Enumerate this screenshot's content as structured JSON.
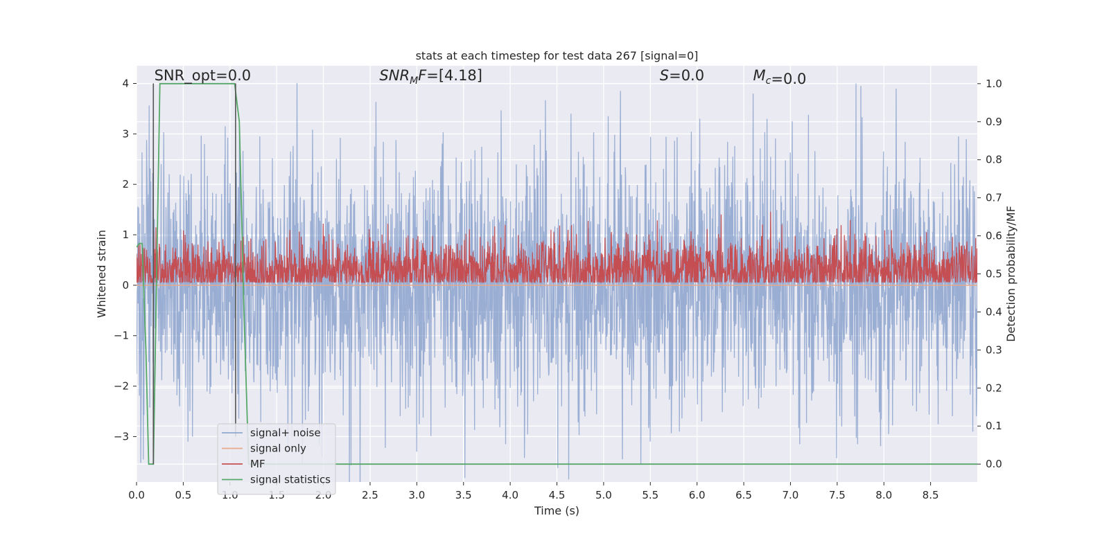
{
  "chart_data": {
    "type": "line",
    "title": "stats at each timestep for test data 267 [signal=0]",
    "xlabel": "Time (s)",
    "ylabel": "Whitened strain",
    "y2label": "Detection probability/MF",
    "xlim": [
      0,
      9.0
    ],
    "ylim": [
      -3.9,
      4.35
    ],
    "y2lim": [
      -0.047,
      1.047
    ],
    "xticks": [
      0.0,
      0.5,
      1.0,
      1.5,
      2.0,
      2.5,
      3.0,
      3.5,
      4.0,
      4.5,
      5.0,
      5.5,
      6.0,
      6.5,
      7.0,
      7.5,
      8.0,
      8.5
    ],
    "yticks": [
      -3,
      -2,
      -1,
      0,
      1,
      2,
      3,
      4
    ],
    "y2ticks": [
      0.0,
      0.1,
      0.2,
      0.3,
      0.4,
      0.5,
      0.6,
      0.7,
      0.8,
      0.9,
      1.0
    ],
    "grid": true,
    "legend_position": "lower-left",
    "annotations": [
      {
        "text": "SNR_opt=0.0",
        "x": 0.19,
        "y": 4.05,
        "italic": false
      },
      {
        "text": "SNR_MF=[4.18]",
        "x": 2.6,
        "y": 4.05,
        "italic": true
      },
      {
        "text": "S=0.0",
        "x": 5.6,
        "y": 4.05,
        "italic": true
      },
      {
        "text": "M_c=0.0",
        "x": 6.6,
        "y": 4.05,
        "italic": true
      }
    ],
    "vlines": [
      {
        "x": 0.18,
        "y": [
          -3.55,
          4.0
        ]
      },
      {
        "x": 1.06,
        "y": [
          -3.0,
          4.0
        ]
      }
    ],
    "series": [
      {
        "name": "signal+ noise",
        "axis": "left",
        "style": "noise",
        "color": "#7b97c7",
        "amplitude": 1.2,
        "x_range": [
          0,
          9.0
        ],
        "peaks": [
          [
            0.05,
            -2.6
          ],
          [
            0.35,
            2.2
          ],
          [
            0.46,
            -2.4
          ],
          [
            0.55,
            -3.1
          ],
          [
            0.95,
            3.15
          ],
          [
            1.1,
            3.08
          ],
          [
            1.32,
            2.95
          ],
          [
            1.65,
            2.65
          ],
          [
            1.84,
            -2.5
          ],
          [
            2.55,
            2.75
          ],
          [
            2.88,
            -2.45
          ],
          [
            3.0,
            -3.3
          ],
          [
            3.95,
            -3.15
          ],
          [
            4.55,
            -2.4
          ],
          [
            4.65,
            3.4
          ],
          [
            4.8,
            -2.6
          ],
          [
            5.05,
            3.35
          ],
          [
            5.18,
            3.85
          ],
          [
            5.2,
            -3.45
          ],
          [
            5.4,
            -3.55
          ],
          [
            5.5,
            -3.1
          ],
          [
            6.05,
            -2.7
          ],
          [
            6.6,
            3.8
          ],
          [
            6.75,
            3.3
          ],
          [
            7.02,
            3.25
          ],
          [
            7.1,
            -3.15
          ],
          [
            7.55,
            -2.8
          ],
          [
            7.7,
            4.0
          ],
          [
            7.72,
            -3.15
          ],
          [
            8.05,
            -2.95
          ],
          [
            8.35,
            -2.5
          ],
          [
            8.8,
            2.95
          ],
          [
            8.95,
            -2.9
          ]
        ]
      },
      {
        "name": "signal only",
        "axis": "left",
        "style": "flat",
        "color": "#e8a98a",
        "y": 0.0
      },
      {
        "name": "MF",
        "axis": "right",
        "style": "noise",
        "color": "#c44e52",
        "baseline": 0.5,
        "amplitude": 0.046,
        "x_range": [
          0,
          9.0
        ],
        "peaks": [
          [
            0.02,
            0.58
          ],
          [
            0.25,
            0.57
          ],
          [
            3.0,
            0.59
          ],
          [
            5.5,
            0.59
          ],
          [
            7.05,
            0.6
          ],
          [
            7.7,
            0.59
          ]
        ]
      },
      {
        "name": "signal statistics",
        "axis": "right",
        "style": "line",
        "color": "#55a868",
        "x": [
          0.0,
          0.03,
          0.06,
          0.1,
          0.13,
          0.18,
          0.25,
          0.5,
          1.0,
          1.05,
          1.1,
          1.15,
          1.2,
          1.25,
          9.0
        ],
        "y": [
          0.57,
          0.58,
          0.58,
          0.3,
          0.0,
          0.0,
          1.0,
          1.0,
          1.0,
          1.0,
          0.9,
          0.4,
          0.0,
          0.0,
          0.0
        ]
      }
    ]
  }
}
